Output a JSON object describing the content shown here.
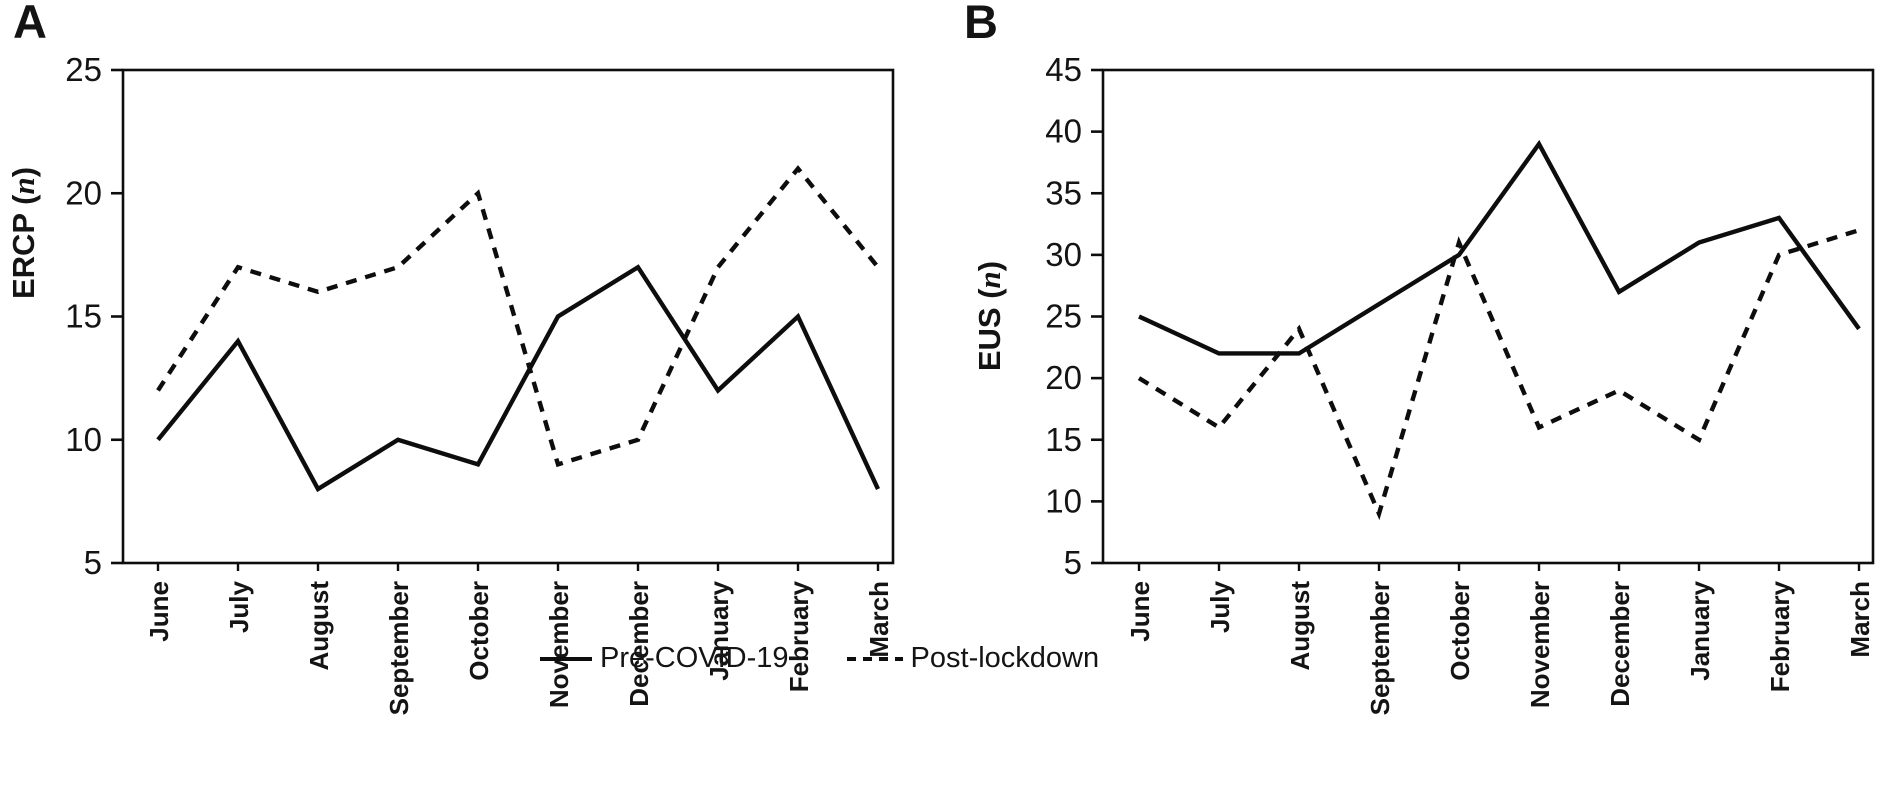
{
  "figure": {
    "panels": [
      {
        "label": "A",
        "ylabel_parts": [
          "ERCP (",
          "n",
          ")"
        ]
      },
      {
        "label": "B",
        "ylabel_parts": [
          "EUS (",
          "n",
          ")"
        ]
      }
    ],
    "legend": [
      {
        "name": "Pre-COVID-19",
        "style": "solid"
      },
      {
        "name": "Post-lockdown",
        "style": "dashed"
      }
    ],
    "colors": {
      "line": "#0d0d0d",
      "text": "#141414",
      "background": "#ffffff"
    }
  },
  "chart_data": [
    {
      "type": "line",
      "panel": "A",
      "ylabel": "ERCP (n)",
      "categories": [
        "June",
        "July",
        "August",
        "September",
        "October",
        "November",
        "December",
        "January",
        "February",
        "March"
      ],
      "series": [
        {
          "name": "Pre-COVID-19",
          "style": "solid",
          "values": [
            10,
            14,
            8,
            10,
            9,
            15,
            17,
            12,
            15,
            8
          ]
        },
        {
          "name": "Post-lockdown",
          "style": "dashed",
          "values": [
            12,
            17,
            16,
            17,
            20,
            9,
            10,
            17,
            21,
            17
          ]
        }
      ],
      "ylim": [
        5,
        25
      ],
      "yticks": [
        5,
        10,
        15,
        20,
        25
      ],
      "grid": false,
      "legend_position": "bottom"
    },
    {
      "type": "line",
      "panel": "B",
      "ylabel": "EUS (n)",
      "categories": [
        "June",
        "July",
        "August",
        "September",
        "October",
        "November",
        "December",
        "January",
        "February",
        "March"
      ],
      "series": [
        {
          "name": "Pre-COVID-19",
          "style": "solid",
          "values": [
            25,
            22,
            22,
            26,
            30,
            39,
            27,
            31,
            33,
            24
          ]
        },
        {
          "name": "Post-lockdown",
          "style": "dashed",
          "values": [
            20,
            16,
            24,
            9,
            31,
            16,
            19,
            15,
            30,
            32
          ]
        }
      ],
      "ylim": [
        5,
        45
      ],
      "yticks": [
        5,
        10,
        15,
        20,
        25,
        30,
        35,
        40,
        45
      ],
      "grid": false,
      "legend_position": "bottom"
    }
  ]
}
